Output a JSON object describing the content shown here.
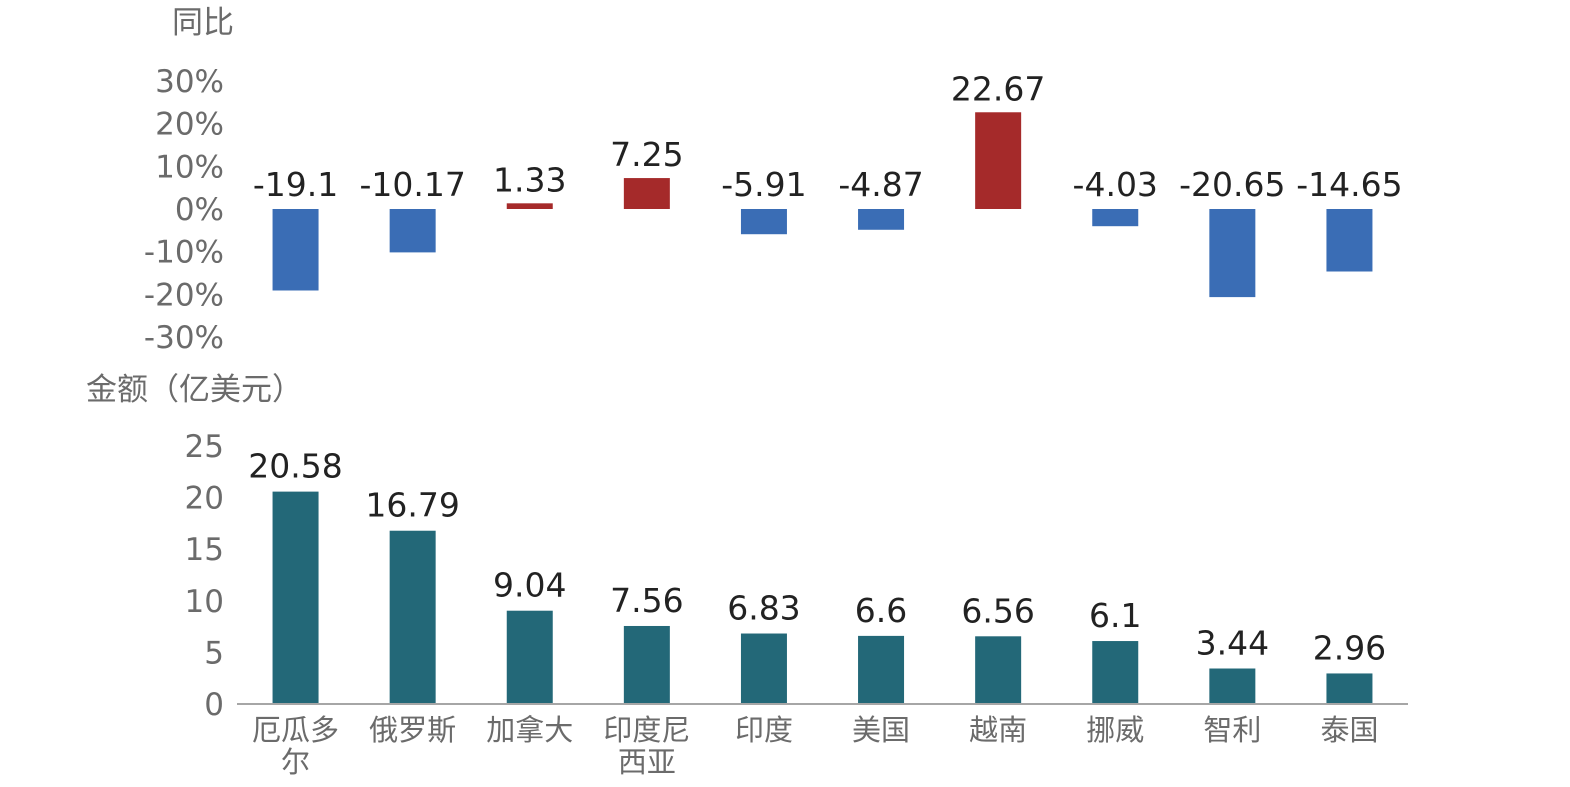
{
  "chart_data": [
    {
      "type": "bar",
      "title": "",
      "ylabel": "同比",
      "ylim": [
        -30,
        30
      ],
      "yticks": [
        "30%",
        "20%",
        "10%",
        "0%",
        "-10%",
        "-20%",
        "-30%"
      ],
      "categories": [
        "厄瓜多尔",
        "俄罗斯",
        "加拿大",
        "印度尼西亚",
        "印度",
        "美国",
        "越南",
        "挪威",
        "智利",
        "泰国"
      ],
      "values": [
        -19.1,
        -10.17,
        1.33,
        7.25,
        -5.91,
        -4.87,
        22.67,
        -4.03,
        -20.65,
        -14.65
      ],
      "labels": [
        "-19.1",
        "-10.17",
        "1.33",
        "7.25",
        "-5.91",
        "-4.87",
        "22.67",
        "-4.03",
        "-20.65",
        "-14.65"
      ],
      "colors": {
        "positive": "#a52a2a",
        "negative": "#3a6db5"
      }
    },
    {
      "type": "bar",
      "title": "",
      "ylabel": "金额（亿美元）",
      "ylim": [
        0,
        25
      ],
      "yticks": [
        "25",
        "20",
        "15",
        "10",
        "5",
        "0"
      ],
      "categories": [
        "厄瓜多尔",
        "俄罗斯",
        "加拿大",
        "印度尼西亚",
        "印度",
        "美国",
        "越南",
        "挪威",
        "智利",
        "泰国"
      ],
      "category_lines": [
        [
          "厄瓜多",
          "尔"
        ],
        [
          "俄罗斯"
        ],
        [
          "加拿大"
        ],
        [
          "印度尼",
          "西亚"
        ],
        [
          "印度"
        ],
        [
          "美国"
        ],
        [
          "越南"
        ],
        [
          "挪威"
        ],
        [
          "智利"
        ],
        [
          "泰国"
        ]
      ],
      "values": [
        20.58,
        16.79,
        9.04,
        7.56,
        6.83,
        6.6,
        6.56,
        6.1,
        3.44,
        2.96
      ],
      "labels": [
        "20.58",
        "16.79",
        "9.04",
        "7.56",
        "6.83",
        "6.6",
        "6.56",
        "6.1",
        "3.44",
        "2.96"
      ],
      "colors": {
        "bar": "#236878"
      }
    }
  ]
}
